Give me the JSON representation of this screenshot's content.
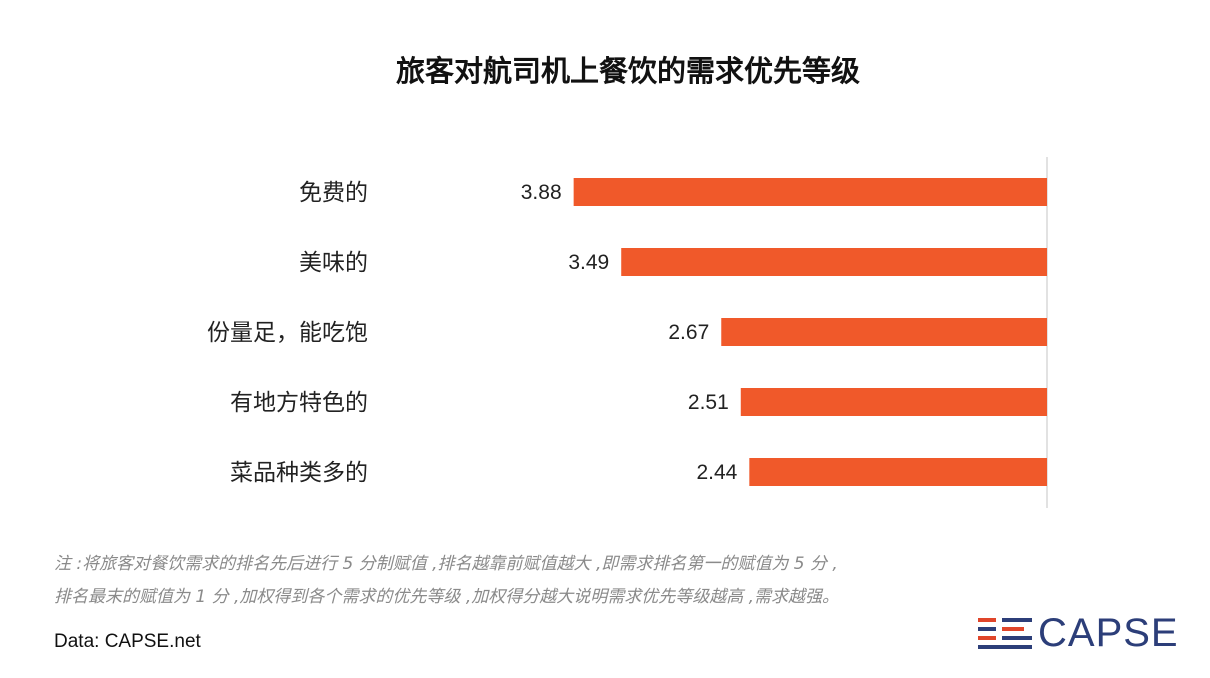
{
  "chart_data": {
    "type": "bar",
    "orientation": "horizontal",
    "title": "旅客对航司机上餐饮的需求优先等级",
    "categories": [
      "免费的",
      "美味的",
      "份量足，能吃饱",
      "有地方特色的",
      "菜品种类多的"
    ],
    "values": [
      3.88,
      3.49,
      2.67,
      2.51,
      2.44
    ],
    "value_labels": [
      "3.88",
      "3.49",
      "2.67",
      "2.51",
      "2.44"
    ],
    "bar_direction": "right-to-left",
    "xlim": [
      0,
      5
    ],
    "grid": false,
    "bar_color": "#f0592a"
  },
  "footnote": {
    "line1": "注 :将旅客对餐饮需求的排名先后进行 5 分制赋值 ,排名越靠前赋值越大 ,即需求排名第一的赋值为 5 分 ,",
    "line2": "排名最末的赋值为 1 分 ,加权得到各个需求的优先等级 ,加权得分越大说明需求优先等级越高 ,需求越强。"
  },
  "source": "Data: CAPSE.net",
  "logo": {
    "text": "CAPSE",
    "color": "#2c3e79",
    "accent": "#e0452a"
  }
}
